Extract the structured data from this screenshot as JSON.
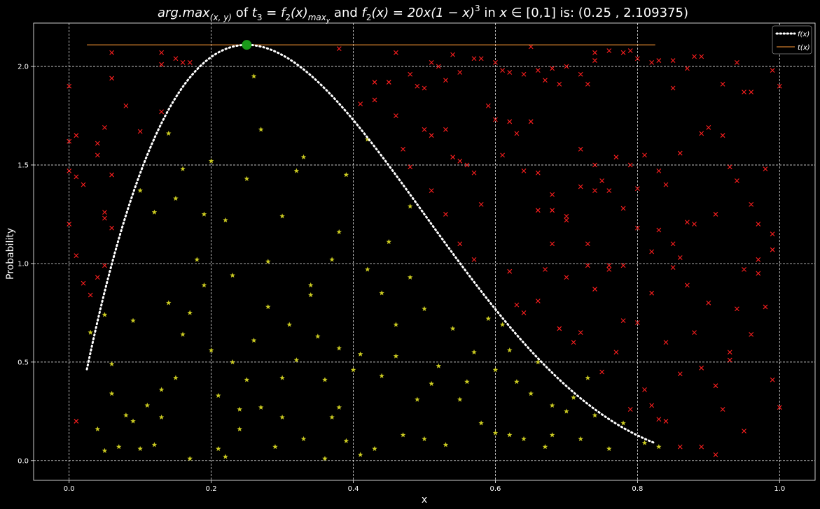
{
  "chart_data": {
    "type": "scatter",
    "title": {
      "prefix": "arg.max",
      "prefix_sub": "(x, y)",
      "of": " of ",
      "t3": "t",
      "t3_sub": "3",
      "eq1": " = f",
      "f_sub": "2",
      "arg": "(x)",
      "max_sub": "max",
      "max_sub_sub": "y",
      "and": " and ",
      "f2": "f",
      "f2_sub": "2",
      "formula": "(x) = 20x(1 − x)",
      "formula_sup": "3",
      "in": " in ",
      "x_in": "x ∈ ",
      "domain": " [0,1] is:   (0.25 , 2.109375)"
    },
    "xlabel": "x",
    "ylabel": "Probability",
    "xlim": [
      -0.05,
      1.05
    ],
    "ylim": [
      -0.1,
      2.22
    ],
    "xticks": [
      "0.0",
      "0.2",
      "0.4",
      "0.6",
      "0.8",
      "1.0"
    ],
    "yticks": [
      "0.0",
      "0.5",
      "1.0",
      "1.5",
      "2.0"
    ],
    "grid": true,
    "legend_position": "top-right",
    "legend": [
      {
        "label": "f(x)",
        "style": "dotted",
        "color": "#ffffff"
      },
      {
        "label": "t(x)",
        "style": "solid",
        "color": "#ff9933"
      }
    ],
    "curve": {
      "name": "f(x)",
      "function": "20*x*(1-x)^3",
      "x_range": [
        0.025,
        0.825
      ],
      "color": "#ffffff"
    },
    "threshold_line": {
      "name": "t(x)",
      "y": 2.109375,
      "x_range": [
        0.025,
        0.825
      ],
      "color": "#ff9933"
    },
    "max_point": {
      "x": 0.25,
      "y": 2.109375,
      "color": "#1a9a1a"
    },
    "accepted_points": {
      "marker": "star",
      "color": "#cccc22",
      "points": [
        [
          0.03,
          0.65
        ],
        [
          0.04,
          0.16
        ],
        [
          0.05,
          0.74
        ],
        [
          0.05,
          0.05
        ],
        [
          0.06,
          0.34
        ],
        [
          0.07,
          0.07
        ],
        [
          0.08,
          0.23
        ],
        [
          0.09,
          0.71
        ],
        [
          0.1,
          1.37
        ],
        [
          0.1,
          0.06
        ],
        [
          0.11,
          0.28
        ],
        [
          0.12,
          1.26
        ],
        [
          0.12,
          0.08
        ],
        [
          0.13,
          0.36
        ],
        [
          0.14,
          1.66
        ],
        [
          0.14,
          0.8
        ],
        [
          0.15,
          1.33
        ],
        [
          0.15,
          0.42
        ],
        [
          0.16,
          1.48
        ],
        [
          0.17,
          0.75
        ],
        [
          0.17,
          0.01
        ],
        [
          0.18,
          1.02
        ],
        [
          0.19,
          1.25
        ],
        [
          0.2,
          0.56
        ],
        [
          0.2,
          1.52
        ],
        [
          0.21,
          0.06
        ],
        [
          0.22,
          1.22
        ],
        [
          0.22,
          0.02
        ],
        [
          0.23,
          0.94
        ],
        [
          0.23,
          0.5
        ],
        [
          0.24,
          0.16
        ],
        [
          0.25,
          0.41
        ],
        [
          0.25,
          1.43
        ],
        [
          0.26,
          1.95
        ],
        [
          0.27,
          0.27
        ],
        [
          0.27,
          1.68
        ],
        [
          0.28,
          1.01
        ],
        [
          0.29,
          0.07
        ],
        [
          0.3,
          1.24
        ],
        [
          0.3,
          0.42
        ],
        [
          0.31,
          0.69
        ],
        [
          0.32,
          1.47
        ],
        [
          0.33,
          0.11
        ],
        [
          0.33,
          1.54
        ],
        [
          0.34,
          0.89
        ],
        [
          0.35,
          0.63
        ],
        [
          0.36,
          0.01
        ],
        [
          0.37,
          1.02
        ],
        [
          0.37,
          0.22
        ],
        [
          0.38,
          1.16
        ],
        [
          0.38,
          0.57
        ],
        [
          0.39,
          0.1
        ],
        [
          0.39,
          1.45
        ],
        [
          0.4,
          0.46
        ],
        [
          0.41,
          0.03
        ],
        [
          0.42,
          1.63
        ],
        [
          0.42,
          0.97
        ],
        [
          0.43,
          0.06
        ],
        [
          0.44,
          0.43
        ],
        [
          0.45,
          1.11
        ],
        [
          0.46,
          0.69
        ],
        [
          0.47,
          0.13
        ],
        [
          0.48,
          1.29
        ],
        [
          0.49,
          0.31
        ],
        [
          0.5,
          0.77
        ],
        [
          0.5,
          0.11
        ],
        [
          0.52,
          0.48
        ],
        [
          0.53,
          0.08
        ],
        [
          0.55,
          0.31
        ],
        [
          0.56,
          0.4
        ],
        [
          0.58,
          0.19
        ],
        [
          0.59,
          0.72
        ],
        [
          0.6,
          0.14
        ],
        [
          0.61,
          0.69
        ],
        [
          0.62,
          0.13
        ],
        [
          0.63,
          0.4
        ],
        [
          0.64,
          0.11
        ],
        [
          0.66,
          0.5
        ],
        [
          0.67,
          0.07
        ],
        [
          0.68,
          0.13
        ],
        [
          0.7,
          0.25
        ],
        [
          0.72,
          0.11
        ],
        [
          0.74,
          0.23
        ],
        [
          0.76,
          0.06
        ],
        [
          0.78,
          0.19
        ],
        [
          0.81,
          0.09
        ],
        [
          0.83,
          0.07
        ],
        [
          0.06,
          0.49
        ],
        [
          0.09,
          0.2
        ],
        [
          0.13,
          0.22
        ],
        [
          0.16,
          0.64
        ],
        [
          0.19,
          0.89
        ],
        [
          0.21,
          0.33
        ],
        [
          0.24,
          0.26
        ],
        [
          0.26,
          0.61
        ],
        [
          0.28,
          0.78
        ],
        [
          0.3,
          0.22
        ],
        [
          0.32,
          0.51
        ],
        [
          0.34,
          0.84
        ],
        [
          0.36,
          0.41
        ],
        [
          0.38,
          0.27
        ],
        [
          0.41,
          0.54
        ],
        [
          0.44,
          0.85
        ],
        [
          0.46,
          0.53
        ],
        [
          0.48,
          0.93
        ],
        [
          0.51,
          0.39
        ],
        [
          0.54,
          0.67
        ],
        [
          0.57,
          0.55
        ],
        [
          0.6,
          0.46
        ],
        [
          0.62,
          0.56
        ],
        [
          0.65,
          0.34
        ],
        [
          0.68,
          0.28
        ],
        [
          0.71,
          0.32
        ],
        [
          0.73,
          0.42
        ]
      ]
    },
    "rejected_points": {
      "marker": "x",
      "color": "#ff1f1f",
      "points": [
        [
          0.0,
          1.9
        ],
        [
          0.0,
          1.62
        ],
        [
          0.01,
          1.65
        ],
        [
          0.0,
          1.47
        ],
        [
          0.01,
          1.44
        ],
        [
          0.02,
          1.4
        ],
        [
          0.0,
          1.2
        ],
        [
          0.01,
          1.04
        ],
        [
          0.02,
          0.9
        ],
        [
          0.03,
          0.84
        ],
        [
          0.01,
          0.2
        ],
        [
          0.06,
          2.07
        ],
        [
          0.06,
          1.94
        ],
        [
          0.05,
          1.69
        ],
        [
          0.04,
          1.61
        ],
        [
          0.04,
          1.55
        ],
        [
          0.06,
          1.45
        ],
        [
          0.05,
          1.26
        ],
        [
          0.05,
          1.23
        ],
        [
          0.06,
          1.18
        ],
        [
          0.04,
          0.93
        ],
        [
          0.05,
          0.99
        ],
        [
          0.13,
          2.07
        ],
        [
          0.13,
          2.01
        ],
        [
          0.15,
          2.04
        ],
        [
          0.16,
          2.02
        ],
        [
          0.17,
          2.02
        ],
        [
          0.13,
          1.77
        ],
        [
          0.08,
          1.8
        ],
        [
          0.1,
          1.67
        ],
        [
          0.38,
          2.09
        ],
        [
          0.41,
          1.81
        ],
        [
          0.43,
          1.92
        ],
        [
          0.45,
          1.92
        ],
        [
          0.43,
          1.83
        ],
        [
          0.46,
          2.07
        ],
        [
          0.48,
          1.96
        ],
        [
          0.49,
          1.9
        ],
        [
          0.5,
          1.89
        ],
        [
          0.51,
          2.02
        ],
        [
          0.52,
          2.0
        ],
        [
          0.53,
          1.93
        ],
        [
          0.54,
          2.06
        ],
        [
          0.55,
          1.97
        ],
        [
          0.57,
          2.04
        ],
        [
          0.58,
          2.04
        ],
        [
          0.59,
          1.8
        ],
        [
          0.6,
          2.02
        ],
        [
          0.61,
          1.98
        ],
        [
          0.62,
          1.97
        ],
        [
          0.64,
          1.96
        ],
        [
          0.65,
          2.1
        ],
        [
          0.66,
          1.98
        ],
        [
          0.67,
          1.93
        ],
        [
          0.68,
          1.99
        ],
        [
          0.69,
          1.91
        ],
        [
          0.7,
          2.0
        ],
        [
          0.72,
          1.96
        ],
        [
          0.73,
          1.91
        ],
        [
          0.74,
          2.07
        ],
        [
          0.74,
          2.03
        ],
        [
          0.76,
          2.08
        ],
        [
          0.78,
          2.07
        ],
        [
          0.79,
          2.08
        ],
        [
          0.8,
          2.04
        ],
        [
          0.82,
          2.02
        ],
        [
          0.83,
          2.03
        ],
        [
          0.85,
          2.03
        ],
        [
          0.87,
          1.99
        ],
        [
          0.88,
          2.05
        ],
        [
          0.89,
          2.05
        ],
        [
          0.92,
          1.91
        ],
        [
          0.94,
          2.02
        ],
        [
          0.96,
          1.87
        ],
        [
          0.99,
          1.98
        ],
        [
          1.0,
          1.9
        ],
        [
          0.46,
          1.75
        ],
        [
          0.47,
          1.58
        ],
        [
          0.48,
          1.49
        ],
        [
          0.5,
          1.68
        ],
        [
          0.51,
          1.65
        ],
        [
          0.53,
          1.68
        ],
        [
          0.54,
          1.54
        ],
        [
          0.55,
          1.52
        ],
        [
          0.56,
          1.5
        ],
        [
          0.57,
          1.46
        ],
        [
          0.58,
          1.3
        ],
        [
          0.6,
          1.73
        ],
        [
          0.61,
          1.55
        ],
        [
          0.62,
          1.72
        ],
        [
          0.63,
          1.66
        ],
        [
          0.64,
          1.47
        ],
        [
          0.65,
          1.72
        ],
        [
          0.66,
          1.46
        ],
        [
          0.68,
          1.35
        ],
        [
          0.7,
          1.24
        ],
        [
          0.72,
          1.58
        ],
        [
          0.74,
          1.5
        ],
        [
          0.75,
          1.42
        ],
        [
          0.77,
          1.54
        ],
        [
          0.79,
          1.5
        ],
        [
          0.8,
          1.38
        ],
        [
          0.81,
          1.55
        ],
        [
          0.83,
          1.47
        ],
        [
          0.84,
          1.4
        ],
        [
          0.85,
          1.89
        ],
        [
          0.86,
          1.56
        ],
        [
          0.88,
          1.2
        ],
        [
          0.89,
          1.66
        ],
        [
          0.9,
          1.69
        ],
        [
          0.91,
          1.25
        ],
        [
          0.92,
          1.65
        ],
        [
          0.93,
          1.49
        ],
        [
          0.94,
          1.42
        ],
        [
          0.95,
          1.87
        ],
        [
          0.96,
          1.3
        ],
        [
          0.97,
          1.2
        ],
        [
          0.98,
          1.48
        ],
        [
          0.99,
          1.15
        ],
        [
          0.51,
          1.37
        ],
        [
          0.53,
          1.25
        ],
        [
          0.55,
          1.1
        ],
        [
          0.57,
          1.02
        ],
        [
          0.62,
          0.96
        ],
        [
          0.63,
          0.79
        ],
        [
          0.64,
          0.75
        ],
        [
          0.66,
          0.81
        ],
        [
          0.67,
          0.97
        ],
        [
          0.68,
          1.1
        ],
        [
          0.69,
          0.67
        ],
        [
          0.7,
          0.93
        ],
        [
          0.72,
          0.65
        ],
        [
          0.73,
          0.99
        ],
        [
          0.74,
          0.87
        ],
        [
          0.75,
          0.45
        ],
        [
          0.76,
          0.97
        ],
        [
          0.77,
          0.55
        ],
        [
          0.78,
          0.71
        ],
        [
          0.79,
          0.26
        ],
        [
          0.8,
          0.7
        ],
        [
          0.81,
          0.36
        ],
        [
          0.82,
          0.85
        ],
        [
          0.83,
          0.21
        ],
        [
          0.84,
          0.6
        ],
        [
          0.85,
          0.98
        ],
        [
          0.86,
          0.44
        ],
        [
          0.87,
          0.89
        ],
        [
          0.88,
          0.65
        ],
        [
          0.89,
          0.47
        ],
        [
          0.9,
          0.8
        ],
        [
          0.91,
          0.38
        ],
        [
          0.92,
          0.26
        ],
        [
          0.93,
          0.55
        ],
        [
          0.94,
          0.77
        ],
        [
          0.95,
          0.15
        ],
        [
          0.96,
          0.64
        ],
        [
          0.97,
          0.95
        ],
        [
          0.98,
          0.78
        ],
        [
          0.99,
          0.41
        ],
        [
          1.0,
          0.27
        ],
        [
          0.82,
          0.28
        ],
        [
          0.84,
          0.2
        ],
        [
          0.86,
          0.07
        ],
        [
          0.89,
          0.07
        ],
        [
          0.91,
          0.03
        ],
        [
          0.93,
          0.51
        ],
        [
          0.95,
          0.97
        ],
        [
          0.97,
          1.02
        ],
        [
          0.99,
          1.07
        ],
        [
          0.83,
          1.17
        ],
        [
          0.85,
          1.1
        ],
        [
          0.87,
          1.21
        ],
        [
          0.71,
          0.6
        ],
        [
          0.73,
          1.1
        ],
        [
          0.76,
          0.99
        ],
        [
          0.78,
          1.28
        ],
        [
          0.8,
          1.18
        ],
        [
          0.82,
          1.06
        ],
        [
          0.86,
          1.03
        ],
        [
          0.66,
          1.27
        ],
        [
          0.68,
          1.27
        ],
        [
          0.7,
          1.22
        ],
        [
          0.72,
          1.39
        ],
        [
          0.74,
          1.37
        ],
        [
          0.76,
          1.37
        ],
        [
          0.78,
          0.99
        ]
      ]
    }
  }
}
